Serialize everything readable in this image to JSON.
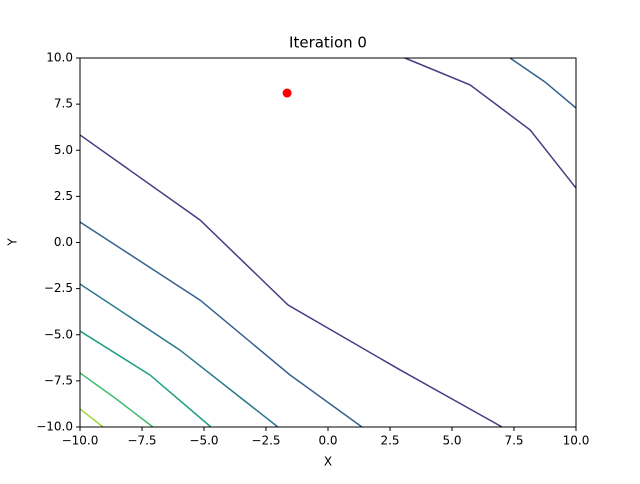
{
  "chart_data": {
    "type": "contour",
    "title": "Iteration 0",
    "x_label": "X",
    "y_label": "Y",
    "xlim": [
      -10,
      10
    ],
    "ylim": [
      -10,
      10
    ],
    "xticks": [
      {
        "value": -10,
        "label": "−10.0"
      },
      {
        "value": -7.5,
        "label": "−7.5"
      },
      {
        "value": -5,
        "label": "−5.0"
      },
      {
        "value": -2.5,
        "label": "−2.5"
      },
      {
        "value": 0,
        "label": "0.0"
      },
      {
        "value": 2.5,
        "label": "2.5"
      },
      {
        "value": 5,
        "label": "5.0"
      },
      {
        "value": 7.5,
        "label": "7.5"
      },
      {
        "value": 10,
        "label": "10.0"
      }
    ],
    "yticks": [
      {
        "value": -10,
        "label": "−10.0"
      },
      {
        "value": -7.5,
        "label": "−7.5"
      },
      {
        "value": -5,
        "label": "−5.0"
      },
      {
        "value": -2.5,
        "label": "−2.5"
      },
      {
        "value": 0,
        "label": "0.0"
      },
      {
        "value": 2.5,
        "label": "2.5"
      },
      {
        "value": 5,
        "label": "5.0"
      },
      {
        "value": 7.5,
        "label": "7.5"
      },
      {
        "value": 10,
        "label": "10.0"
      }
    ],
    "series": [
      {
        "color": "#433d84",
        "x": [
          3.1,
          5.73,
          8.15,
          10
        ],
        "y": [
          10,
          8.54,
          6.1,
          2.95
        ]
      },
      {
        "color": "#433d84",
        "x": [
          -10,
          -5.16,
          -1.61,
          2.9,
          7.02
        ],
        "y": [
          5.83,
          1.22,
          -3.39,
          -6.9,
          -10
        ]
      },
      {
        "color": "#34618d",
        "x": [
          7.34,
          8.75,
          10
        ],
        "y": [
          10,
          8.7,
          7.29
        ]
      },
      {
        "color": "#34618d",
        "x": [
          -10,
          -5.16,
          -1.53,
          1.37
        ],
        "y": [
          1.11,
          -3.12,
          -7.18,
          -10
        ]
      },
      {
        "color": "#2a788e",
        "x": [
          -10,
          -5.97,
          -2.02
        ],
        "y": [
          -2.25,
          -5.83,
          -10
        ]
      },
      {
        "color": "#21a086",
        "x": [
          -10,
          -7.18,
          -4.72
        ],
        "y": [
          -4.8,
          -7.18,
          -10
        ]
      },
      {
        "color": "#3fbc73",
        "x": [
          -10,
          -8.59,
          -7.06
        ],
        "y": [
          -7.07,
          -8.43,
          -10
        ]
      },
      {
        "color": "#a0da39",
        "x": [
          -10,
          -9.07
        ],
        "y": [
          -9.02,
          -10
        ]
      }
    ],
    "scatter": {
      "color": "#ff0000",
      "x": [
        -1.65
      ],
      "y": [
        8.1
      ]
    }
  }
}
